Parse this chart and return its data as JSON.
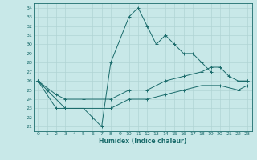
{
  "xlabel": "Humidex (Indice chaleur)",
  "bg_color": "#c8e8e8",
  "line_color": "#1a6b6b",
  "grid_color": "#b0d4d4",
  "xlim": [
    -0.5,
    23.5
  ],
  "ylim": [
    20.5,
    34.5
  ],
  "xticks": [
    0,
    1,
    2,
    3,
    4,
    5,
    6,
    7,
    8,
    9,
    10,
    11,
    12,
    13,
    14,
    15,
    16,
    17,
    18,
    19,
    20,
    21,
    22,
    23
  ],
  "yticks": [
    21,
    22,
    23,
    24,
    25,
    26,
    27,
    28,
    29,
    30,
    31,
    32,
    33,
    34
  ],
  "series": [
    {
      "x": [
        0,
        1,
        3,
        4,
        5,
        6,
        7,
        8,
        10,
        11,
        12,
        13,
        14,
        15,
        16,
        17,
        18,
        19,
        20,
        22,
        23
      ],
      "y": [
        26,
        25,
        23,
        23,
        23,
        22,
        21,
        28,
        33,
        34,
        32,
        30,
        31,
        30,
        29,
        29,
        28,
        27,
        null,
        26,
        26
      ]
    },
    {
      "x": [
        0,
        2,
        3,
        5,
        8,
        10,
        12,
        14,
        16,
        18,
        19,
        20,
        21,
        22,
        23
      ],
      "y": [
        26,
        24.5,
        24,
        24,
        24,
        25,
        25,
        26,
        26.5,
        27,
        27.5,
        27.5,
        26.5,
        26,
        26
      ]
    },
    {
      "x": [
        0,
        2,
        3,
        5,
        8,
        10,
        12,
        14,
        16,
        18,
        20,
        22,
        23
      ],
      "y": [
        26,
        23,
        23,
        23,
        23,
        24,
        24,
        24.5,
        25,
        25.5,
        25.5,
        25,
        25.5
      ]
    }
  ]
}
